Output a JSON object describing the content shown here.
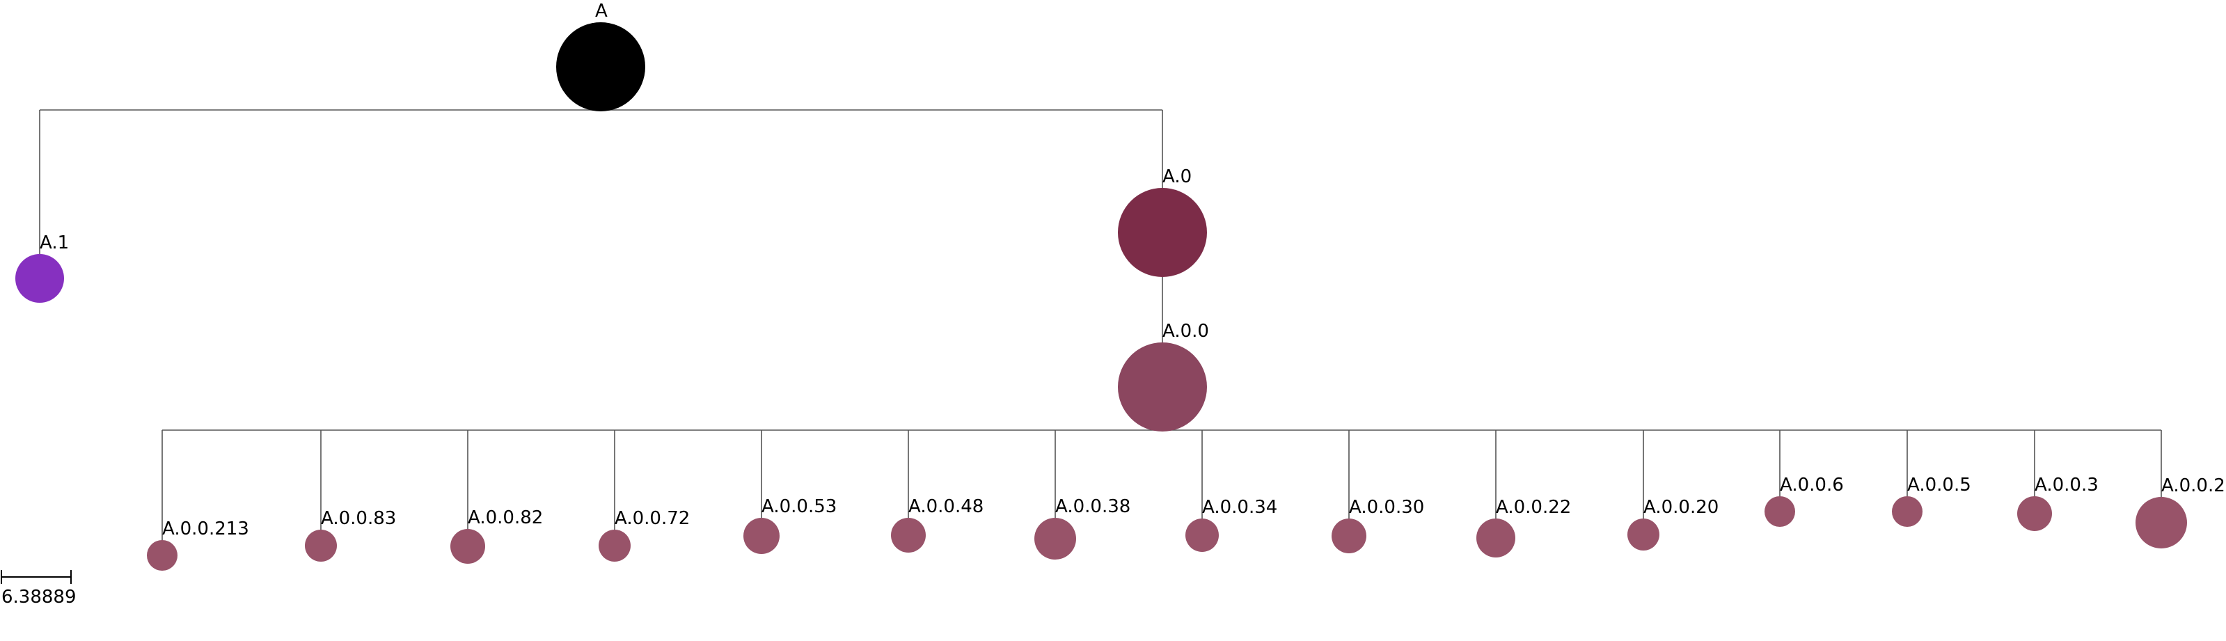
{
  "tree": {
    "root": "A",
    "nodes": [
      {
        "id": "A",
        "label": "A",
        "parent": null,
        "color": "#000000"
      },
      {
        "id": "A.1",
        "label": "A.1",
        "parent": "A",
        "color": "#8630c0"
      },
      {
        "id": "A.0",
        "label": "A.0",
        "parent": "A",
        "color": "#7c2c48"
      },
      {
        "id": "A.0.0",
        "label": "A.0.0",
        "parent": "A.0",
        "color": "#8b465f"
      },
      {
        "id": "A.0.0.213",
        "label": "A.0.0.213",
        "parent": "A.0.0",
        "color": "#985369"
      },
      {
        "id": "A.0.0.83",
        "label": "A.0.0.83",
        "parent": "A.0.0",
        "color": "#985369"
      },
      {
        "id": "A.0.0.82",
        "label": "A.0.0.82",
        "parent": "A.0.0",
        "color": "#985369"
      },
      {
        "id": "A.0.0.72",
        "label": "A.0.0.72",
        "parent": "A.0.0",
        "color": "#985369"
      },
      {
        "id": "A.0.0.53",
        "label": "A.0.0.53",
        "parent": "A.0.0",
        "color": "#985369"
      },
      {
        "id": "A.0.0.48",
        "label": "A.0.0.48",
        "parent": "A.0.0",
        "color": "#985369"
      },
      {
        "id": "A.0.0.38",
        "label": "A.0.0.38",
        "parent": "A.0.0",
        "color": "#985369"
      },
      {
        "id": "A.0.0.34",
        "label": "A.0.0.34",
        "parent": "A.0.0",
        "color": "#985369"
      },
      {
        "id": "A.0.0.30",
        "label": "A.0.0.30",
        "parent": "A.0.0",
        "color": "#985369"
      },
      {
        "id": "A.0.0.22",
        "label": "A.0.0.22",
        "parent": "A.0.0",
        "color": "#985369"
      },
      {
        "id": "A.0.0.20",
        "label": "A.0.0.20",
        "parent": "A.0.0",
        "color": "#985369"
      },
      {
        "id": "A.0.0.6",
        "label": "A.0.0.6",
        "parent": "A.0.0",
        "color": "#985369"
      },
      {
        "id": "A.0.0.5",
        "label": "A.0.0.5",
        "parent": "A.0.0",
        "color": "#985369"
      },
      {
        "id": "A.0.0.3",
        "label": "A.0.0.3",
        "parent": "A.0.0",
        "color": "#985369"
      },
      {
        "id": "A.0.0.2",
        "label": "A.0.0.2",
        "parent": "A.0.0",
        "color": "#985369"
      }
    ]
  },
  "scale_bar": {
    "label": "6.38889"
  }
}
